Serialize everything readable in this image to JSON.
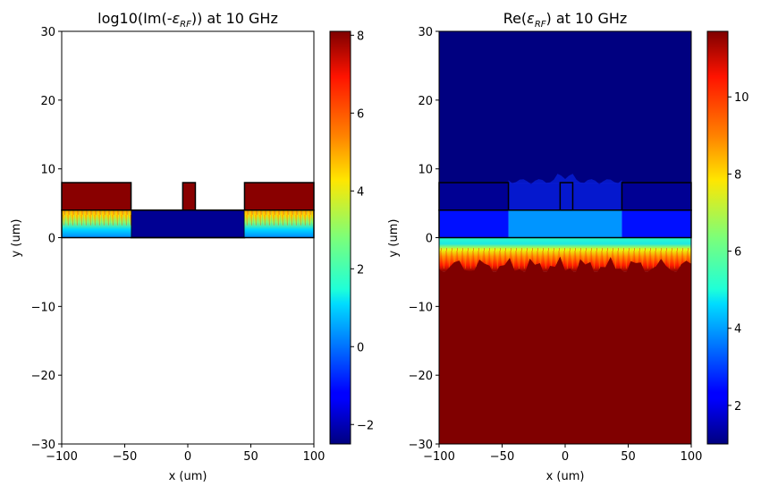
{
  "chart_data": [
    {
      "type": "heatmap",
      "title": "log10(Im(-ε_RF)) at 10 GHz",
      "title_parts": {
        "prefix": "log10(Im(-",
        "symbol": "ε",
        "subscript": "RF",
        "suffix": ")) at 10 GHz"
      },
      "xlabel": "x (um)",
      "ylabel": "y (um)",
      "xlim": [
        -100,
        100
      ],
      "ylim": [
        -30,
        30
      ],
      "x_ticks": [
        "−100",
        "−50",
        "0",
        "50",
        "100"
      ],
      "x_tick_values": [
        -100,
        -50,
        0,
        50,
        100
      ],
      "y_ticks": [
        "−30",
        "−20",
        "−10",
        "0",
        "10",
        "20",
        "30"
      ],
      "y_tick_values": [
        -30,
        -20,
        -10,
        0,
        10,
        20,
        30
      ],
      "colorbar": {
        "colormap": "jet",
        "range": [
          -2.5,
          8.1
        ],
        "ticks": [
          "−2",
          "0",
          "2",
          "4",
          "6",
          "8"
        ],
        "tick_values": [
          -2,
          0,
          2,
          4,
          6,
          8
        ]
      },
      "background_color": "#ffffff",
      "regions": [
        {
          "name": "left electrode",
          "x": [
            -100,
            -45
          ],
          "y": [
            4,
            8
          ],
          "value": 8.0
        },
        {
          "name": "center electrode",
          "x": [
            -4,
            6
          ],
          "y": [
            4,
            8
          ],
          "value": 8.0
        },
        {
          "name": "right electrode",
          "x": [
            45,
            100
          ],
          "y": [
            4,
            8
          ],
          "value": 8.0
        },
        {
          "name": "central slab",
          "x": [
            -45,
            45
          ],
          "y": [
            0,
            4
          ],
          "value": -2.3
        },
        {
          "name": "left doped region",
          "x": [
            -100,
            -45
          ],
          "y": [
            0,
            4
          ],
          "value_top": 5.5,
          "value_bottom": 1.5
        },
        {
          "name": "right doped region",
          "x": [
            45,
            100
          ],
          "y": [
            0,
            4
          ],
          "value_top": 5.5,
          "value_bottom": 1.5
        }
      ]
    },
    {
      "type": "heatmap",
      "title": "Re(ε_RF) at 10 GHz",
      "title_parts": {
        "prefix": "Re(",
        "symbol": "ε",
        "subscript": "RF",
        "suffix": ") at 10 GHz"
      },
      "xlabel": "x (um)",
      "ylabel": "y (um)",
      "xlim": [
        -100,
        100
      ],
      "ylim": [
        -30,
        30
      ],
      "x_ticks": [
        "−100",
        "−50",
        "0",
        "50",
        "100"
      ],
      "x_tick_values": [
        -100,
        -50,
        0,
        50,
        100
      ],
      "y_ticks": [
        "−30",
        "−20",
        "−10",
        "0",
        "10",
        "20",
        "30"
      ],
      "y_tick_values": [
        -30,
        -20,
        -10,
        0,
        10,
        20,
        30
      ],
      "colorbar": {
        "colormap": "jet",
        "range": [
          1.0,
          11.7
        ],
        "ticks": [
          "2",
          "4",
          "6",
          "8",
          "10"
        ],
        "tick_values": [
          2,
          4,
          6,
          8,
          10
        ]
      },
      "regions": [
        {
          "name": "air",
          "x": [
            -100,
            100
          ],
          "y": [
            8,
            30
          ],
          "value": 1.0
        },
        {
          "name": "electrode layer",
          "x": [
            -100,
            100
          ],
          "y": [
            4,
            8
          ],
          "value": 1.2
        },
        {
          "name": "central slab",
          "x": [
            -45,
            45
          ],
          "y": [
            0,
            4
          ],
          "value": 3.9
        },
        {
          "name": "side slab",
          "x": [
            -100,
            -45
          ],
          "y": [
            0,
            4
          ],
          "value": 2.5
        },
        {
          "name": "side slab",
          "x": [
            45,
            100
          ],
          "y": [
            0,
            4
          ],
          "value": 2.5
        },
        {
          "name": "substrate transition",
          "x": [
            -100,
            100
          ],
          "y": [
            -5,
            0
          ],
          "value_top": 5.3,
          "value_bottom": 10.8
        },
        {
          "name": "substrate",
          "x": [
            -100,
            100
          ],
          "y": [
            -30,
            -5
          ],
          "value": 11.7
        }
      ],
      "outlines": [
        {
          "name": "left electrode",
          "x": [
            -100,
            -45
          ],
          "y": [
            4,
            8
          ]
        },
        {
          "name": "center electrode",
          "x": [
            -4,
            6
          ],
          "y": [
            4,
            8
          ]
        },
        {
          "name": "right electrode",
          "x": [
            45,
            100
          ],
          "y": [
            4,
            8
          ]
        },
        {
          "name": "slab",
          "x": [
            -100,
            100
          ],
          "y": [
            0,
            4
          ]
        }
      ]
    }
  ]
}
